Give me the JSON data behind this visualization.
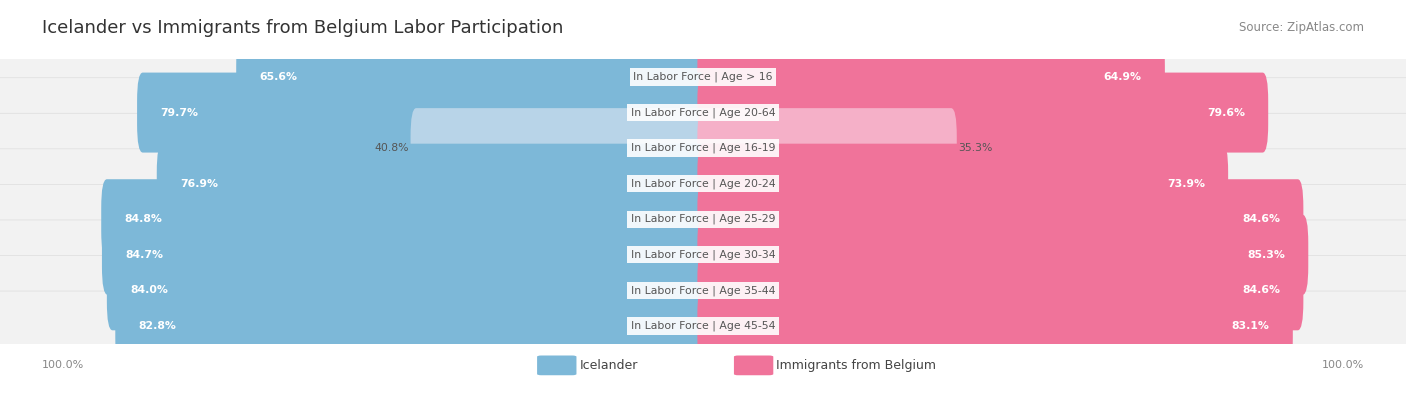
{
  "title": "Icelander vs Immigrants from Belgium Labor Participation",
  "source": "Source: ZipAtlas.com",
  "categories": [
    "In Labor Force | Age > 16",
    "In Labor Force | Age 20-64",
    "In Labor Force | Age 16-19",
    "In Labor Force | Age 20-24",
    "In Labor Force | Age 25-29",
    "In Labor Force | Age 30-34",
    "In Labor Force | Age 35-44",
    "In Labor Force | Age 45-54"
  ],
  "icelander_values": [
    65.6,
    79.7,
    40.8,
    76.9,
    84.8,
    84.7,
    84.0,
    82.8
  ],
  "belgium_values": [
    64.9,
    79.6,
    35.3,
    73.9,
    84.6,
    85.3,
    84.6,
    83.1
  ],
  "icelander_color": "#7db8d8",
  "icelander_color_light": "#b8d4e8",
  "belgium_color": "#f0739a",
  "belgium_color_light": "#f5b0c8",
  "row_bg_color": "#f2f2f2",
  "row_bg_color_alt": "#e8e8e8",
  "label_color": "#555555",
  "title_color": "#333333",
  "source_color": "#888888",
  "max_value": 100.0,
  "legend_icelander": "Icelander",
  "legend_belgium": "Immigrants from Belgium",
  "title_fontsize": 13,
  "label_fontsize": 7.8,
  "value_fontsize": 7.8,
  "legend_fontsize": 9,
  "axis_fontsize": 8
}
